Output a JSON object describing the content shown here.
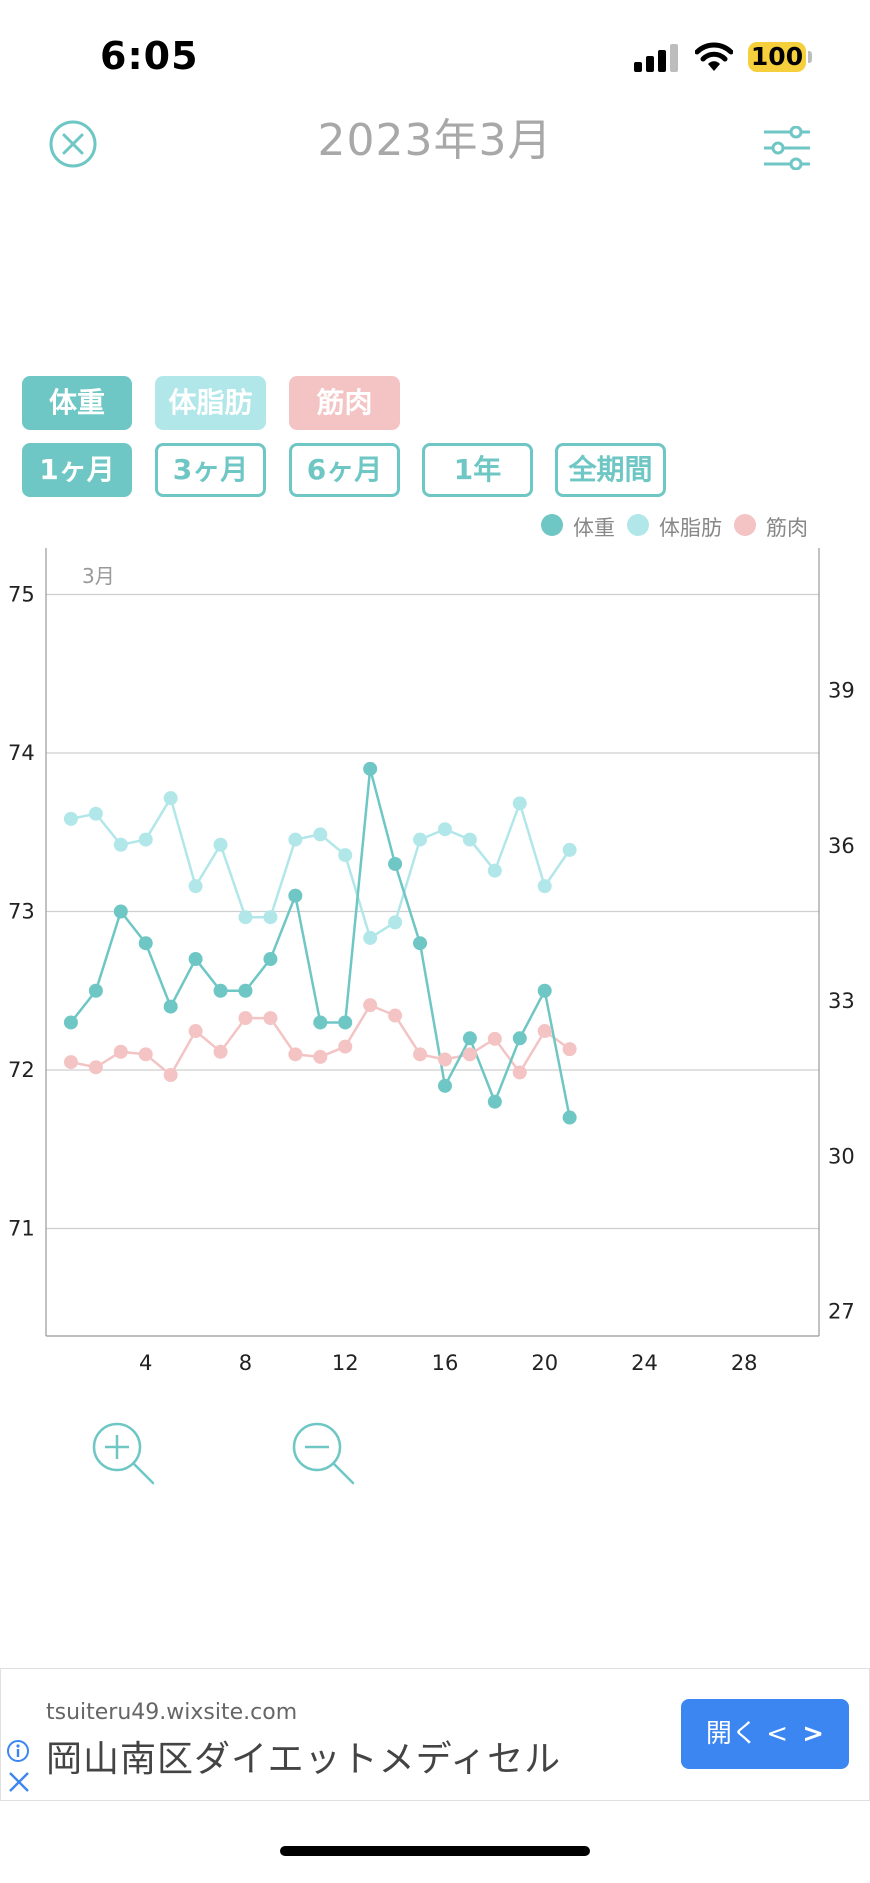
{
  "status_bar": {
    "time": "6:05",
    "battery": "100"
  },
  "header": {
    "title": "2023年3月"
  },
  "metric_tabs": [
    {
      "label": "体重",
      "color": "#6ec7c4"
    },
    {
      "label": "体脂肪",
      "color": "#b2e7ea"
    },
    {
      "label": "筋肉",
      "color": "#f4c4c4"
    }
  ],
  "period_tabs": [
    {
      "label": "1ヶ月",
      "selected": true
    },
    {
      "label": "3ヶ月",
      "selected": false
    },
    {
      "label": "6ヶ月",
      "selected": false
    },
    {
      "label": "1年",
      "selected": false
    },
    {
      "label": "全期間",
      "selected": false
    }
  ],
  "legend": [
    {
      "label": "体重",
      "color": "#6ec7c4"
    },
    {
      "label": "体脂肪",
      "color": "#b2e7ea"
    },
    {
      "label": "筋肉",
      "color": "#f4c4c4"
    }
  ],
  "chart_data": {
    "type": "line",
    "month_label": "3月",
    "xlim": [
      0,
      31
    ],
    "x_ticks": [
      4,
      8,
      12,
      16,
      20,
      24,
      28
    ],
    "left_axis": {
      "ticks": [
        71,
        72,
        73,
        74,
        75
      ]
    },
    "right_axis": {
      "ticks": [
        27,
        30,
        33,
        36,
        39
      ]
    },
    "grid": true,
    "legend_position": "top-right",
    "x": [
      1,
      2,
      3,
      4,
      5,
      6,
      7,
      8,
      9,
      10,
      11,
      12,
      13,
      14,
      15,
      16,
      17,
      18,
      19,
      20,
      21
    ],
    "series": [
      {
        "name": "体重",
        "axis": "left",
        "color": "#6ec7c4",
        "values": [
          72.3,
          72.5,
          73.0,
          72.8,
          72.4,
          72.7,
          72.5,
          72.5,
          72.7,
          73.1,
          72.3,
          72.3,
          73.9,
          73.3,
          72.8,
          71.9,
          72.2,
          71.8,
          72.2,
          72.5,
          71.7
        ]
      },
      {
        "name": "体脂肪",
        "axis": "right",
        "color": "#b2e7ea",
        "values": [
          36.5,
          36.6,
          36.0,
          36.1,
          36.9,
          35.2,
          36.0,
          34.6,
          34.6,
          36.1,
          36.2,
          35.8,
          34.2,
          34.5,
          36.1,
          36.3,
          36.1,
          35.5,
          36.8,
          35.2,
          35.9
        ]
      },
      {
        "name": "筋肉",
        "axis": "right",
        "color": "#f4c4c4",
        "values": [
          31.8,
          31.7,
          32.0,
          31.95,
          31.55,
          32.4,
          32.0,
          32.65,
          32.65,
          31.95,
          31.9,
          32.1,
          32.9,
          32.7,
          31.95,
          31.85,
          31.95,
          32.25,
          31.6,
          32.4,
          32.05
        ]
      }
    ]
  },
  "zoom": {
    "in_label": "zoom-in",
    "out_label": "zoom-out"
  },
  "ad": {
    "domain": "tsuiteru49.wixsite.com",
    "title": "岡山南区ダイエットメディセル",
    "button_label": "開く"
  }
}
